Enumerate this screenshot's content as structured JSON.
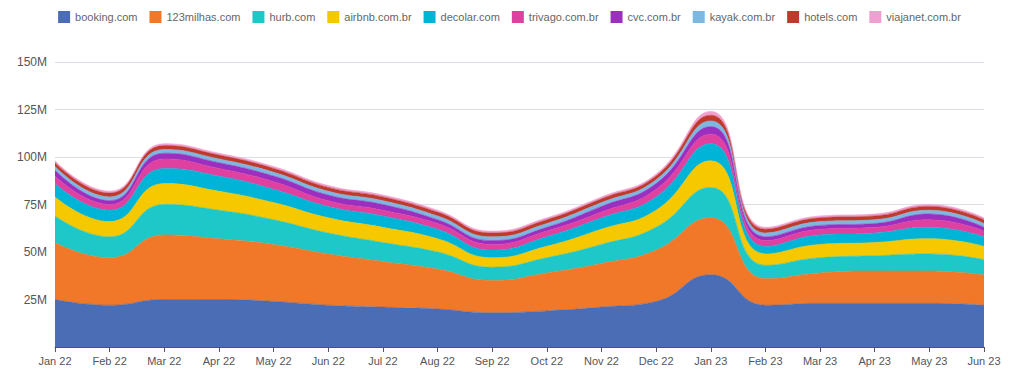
{
  "chart_data": {
    "type": "area",
    "stacked": true,
    "grid": true,
    "legend": "top",
    "categories": [
      "Jan 22",
      "Feb 22",
      "Mar 22",
      "Apr 22",
      "May 22",
      "Jun 22",
      "Jul 22",
      "Aug 22",
      "Sep 22",
      "Oct 22",
      "Nov 22",
      "Dec 22",
      "Jan 23",
      "Feb 23",
      "Mar 23",
      "Apr 23",
      "May 23",
      "Jun 23"
    ],
    "series": [
      {
        "name": "booking.com",
        "color": "#4a6db5",
        "values": [
          25,
          22,
          25,
          25,
          24,
          22,
          21,
          20,
          18,
          19,
          21,
          24,
          38,
          22,
          23,
          23,
          23,
          22
        ]
      },
      {
        "name": "123milhas.com",
        "color": "#f07828",
        "values": [
          30,
          25,
          34,
          32,
          30,
          27,
          24,
          21,
          17,
          20,
          23,
          27,
          30,
          14,
          16,
          17,
          17,
          16
        ]
      },
      {
        "name": "hurb.com",
        "color": "#1ec8c8",
        "values": [
          14,
          11,
          16,
          15,
          13,
          11,
          10,
          9,
          7,
          8,
          10,
          12,
          16,
          7,
          8,
          8,
          9,
          8
        ]
      },
      {
        "name": "airbnb.com.br",
        "color": "#f5c800",
        "values": [
          10,
          8,
          11,
          10,
          9,
          8,
          8,
          7,
          5,
          6,
          8,
          9,
          14,
          6,
          7,
          7,
          8,
          7
        ]
      },
      {
        "name": "decolar.com",
        "color": "#00b4d8",
        "values": [
          7,
          6,
          8,
          8,
          7,
          6,
          6,
          5,
          4,
          5,
          6,
          7,
          9,
          4,
          5,
          5,
          6,
          5
        ]
      },
      {
        "name": "trivago.com.br",
        "color": "#e040a0",
        "values": [
          4,
          3,
          5,
          4,
          4,
          3,
          3,
          3,
          3,
          3,
          3,
          4,
          5,
          3,
          3,
          3,
          4,
          3
        ]
      },
      {
        "name": "cvc.com.br",
        "color": "#9b30c0",
        "values": [
          3,
          2,
          3,
          3,
          3,
          3,
          3,
          2,
          2,
          2,
          3,
          3,
          4,
          2,
          2,
          2,
          3,
          2
        ]
      },
      {
        "name": "kayak.com.br",
        "color": "#7db8e0",
        "values": [
          2,
          2,
          2,
          2,
          2,
          2,
          2,
          2,
          2,
          2,
          2,
          2,
          3,
          2,
          2,
          2,
          2,
          2
        ]
      },
      {
        "name": "hotels.com",
        "color": "#c0392b",
        "values": [
          2,
          2,
          2,
          2,
          2,
          2,
          2,
          2,
          2,
          2,
          2,
          2,
          3,
          2,
          2,
          2,
          2,
          2
        ]
      },
      {
        "name": "viajanet.com.br",
        "color": "#f0a0d0",
        "values": [
          1,
          1,
          1,
          1,
          1,
          1,
          1,
          1,
          1,
          1,
          1,
          1,
          2,
          1,
          1,
          1,
          1,
          1
        ]
      }
    ],
    "ylim": [
      0,
      150
    ],
    "yticks": [
      {
        "value": 0,
        "label": ""
      },
      {
        "value": 25,
        "label": "25M"
      },
      {
        "value": 50,
        "label": "50M"
      },
      {
        "value": 75,
        "label": "75M"
      },
      {
        "value": 100,
        "label": "100M"
      },
      {
        "value": 125,
        "label": "125M"
      },
      {
        "value": 150,
        "label": "150M"
      }
    ]
  }
}
